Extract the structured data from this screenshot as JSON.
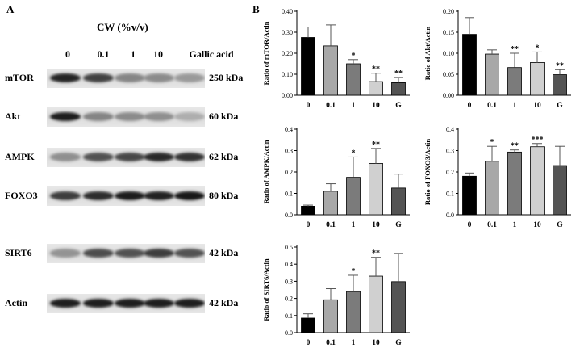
{
  "panel_a": {
    "letter": "A",
    "header": "CW (%v/v)",
    "lanes": [
      "0",
      "0.1",
      "1",
      "10",
      "Gallic acid"
    ],
    "rows": [
      {
        "protein": "mTOR",
        "kda": "250 kDa",
        "band_intensity": [
          0.92,
          0.78,
          0.45,
          0.42,
          0.35
        ]
      },
      {
        "protein": "Akt",
        "kda": "60 kDa",
        "band_intensity": [
          0.95,
          0.45,
          0.42,
          0.4,
          0.25
        ]
      },
      {
        "protein": "AMPK",
        "kda": "62 kDa",
        "band_intensity": [
          0.4,
          0.7,
          0.75,
          0.9,
          0.85
        ]
      },
      {
        "protein": "FOXO3",
        "kda": "80 kDa",
        "band_intensity": [
          0.8,
          0.88,
          0.96,
          0.93,
          0.98
        ]
      },
      {
        "protein": "SIRT6",
        "kda": "42 kDa",
        "band_intensity": [
          0.38,
          0.72,
          0.7,
          0.8,
          0.7
        ]
      },
      {
        "protein": "Actin",
        "kda": "42 kDa",
        "band_intensity": [
          0.95,
          0.95,
          0.95,
          0.95,
          0.95
        ]
      }
    ]
  },
  "panel_b": {
    "letter": "B"
  },
  "chart_data": [
    {
      "type": "bar",
      "ylabel": "Ratio of mTOR/Actin",
      "categories": [
        "0",
        "0.1",
        "1",
        "10",
        "G"
      ],
      "values": [
        0.275,
        0.235,
        0.15,
        0.065,
        0.06
      ],
      "errors": [
        0.05,
        0.1,
        0.02,
        0.04,
        0.025
      ],
      "sig": [
        "",
        "",
        "*",
        "**",
        "**"
      ],
      "ylim": [
        0,
        0.4
      ],
      "yticks": [
        "0.00",
        "0.10",
        "0.20",
        "0.30",
        "0.40"
      ]
    },
    {
      "type": "bar",
      "ylabel": "Ratio of Akt/Actin",
      "categories": [
        "0",
        "0.1",
        "1",
        "10",
        "G"
      ],
      "values": [
        0.145,
        0.098,
        0.066,
        0.078,
        0.049
      ],
      "errors": [
        0.04,
        0.01,
        0.034,
        0.025,
        0.012
      ],
      "sig": [
        "",
        "",
        "**",
        "*",
        "**"
      ],
      "ylim": [
        0,
        0.2
      ],
      "yticks": [
        "0.00",
        "0.05",
        "0.10",
        "0.15",
        "0.20"
      ]
    },
    {
      "type": "bar",
      "ylabel": "Ratio of AMPK/Actin",
      "categories": [
        "0",
        "0.1",
        "1",
        "10",
        "G"
      ],
      "values": [
        0.04,
        0.11,
        0.175,
        0.24,
        0.125
      ],
      "errors": [
        0.005,
        0.035,
        0.095,
        0.07,
        0.065
      ],
      "sig": [
        "",
        "",
        "*",
        "**",
        ""
      ],
      "ylim": [
        0,
        0.4
      ],
      "yticks": [
        "0.0",
        "0.1",
        "0.2",
        "0.3",
        "0.4"
      ]
    },
    {
      "type": "bar",
      "ylabel": "Ratio of FOXO3/Actin",
      "categories": [
        "0",
        "0.1",
        "1",
        "10",
        "G"
      ],
      "values": [
        0.18,
        0.25,
        0.293,
        0.318,
        0.23
      ],
      "errors": [
        0.015,
        0.07,
        0.01,
        0.015,
        0.09
      ],
      "sig": [
        "",
        "*",
        "**",
        "***",
        ""
      ],
      "ylim": [
        0,
        0.4
      ],
      "yticks": [
        "0.0",
        "0.1",
        "0.2",
        "0.3",
        "0.4"
      ]
    },
    {
      "type": "bar",
      "ylabel": "Ratio of SIRT6/Actin",
      "categories": [
        "0",
        "0.1",
        "1",
        "10",
        "G"
      ],
      "values": [
        0.085,
        0.192,
        0.24,
        0.33,
        0.298
      ],
      "errors": [
        0.025,
        0.065,
        0.095,
        0.11,
        0.165
      ],
      "sig": [
        "",
        "",
        "*",
        "**",
        ""
      ],
      "ylim": [
        0,
        0.5
      ],
      "yticks": [
        "0.0",
        "0.1",
        "0.2",
        "0.3",
        "0.4",
        "0.5"
      ]
    }
  ]
}
